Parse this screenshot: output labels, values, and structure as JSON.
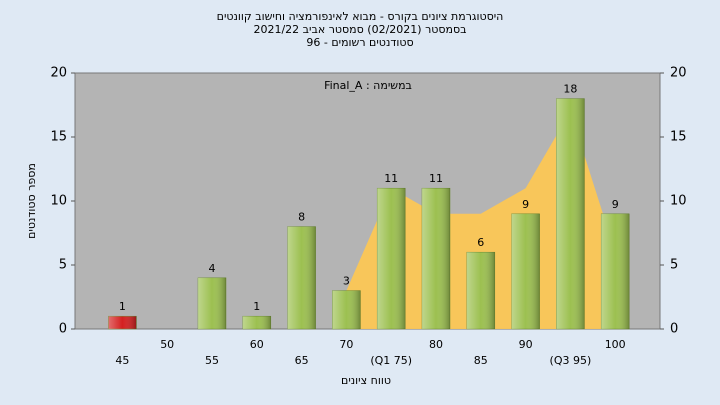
{
  "chart_data": {
    "type": "bar",
    "title": "היסטוגרמת ציונים בקורס - מבוא לאינפורמציה וחישוב קוונטים",
    "subtitle": "בסמסטר  (02/2021)  סמסטר אביב 2021/22",
    "subtitle2": "סטודנטים רשומים - 96",
    "annotation": "Final_A : במשימה",
    "x_label": "טווח ציונים",
    "y_label": "מספר סטודנטים",
    "categories": [
      "45",
      "50",
      "55",
      "60",
      "65",
      "70",
      "(Q1 75)",
      "80",
      "85",
      "90",
      "(Q3 95)",
      "100"
    ],
    "values": [
      1,
      0,
      4,
      1,
      8,
      3,
      11,
      11,
      6,
      9,
      18,
      9
    ],
    "colors": [
      "#d42020",
      "#9cc050",
      "#9cc050",
      "#9cc050",
      "#9cc050",
      "#9cc050",
      "#9cc050",
      "#9cc050",
      "#9cc050",
      "#9cc050",
      "#9cc050",
      "#9cc050"
    ],
    "area": {
      "color": "#ffc850",
      "values": [
        null,
        null,
        null,
        null,
        null,
        3,
        11,
        9,
        9,
        11,
        17,
        6
      ]
    },
    "ylim": [
      0,
      20
    ],
    "yticks": [
      0,
      5,
      10,
      15,
      20
    ],
    "y2lim": [
      0,
      20
    ],
    "y2ticks": [
      0,
      5,
      10,
      15,
      20
    ]
  }
}
